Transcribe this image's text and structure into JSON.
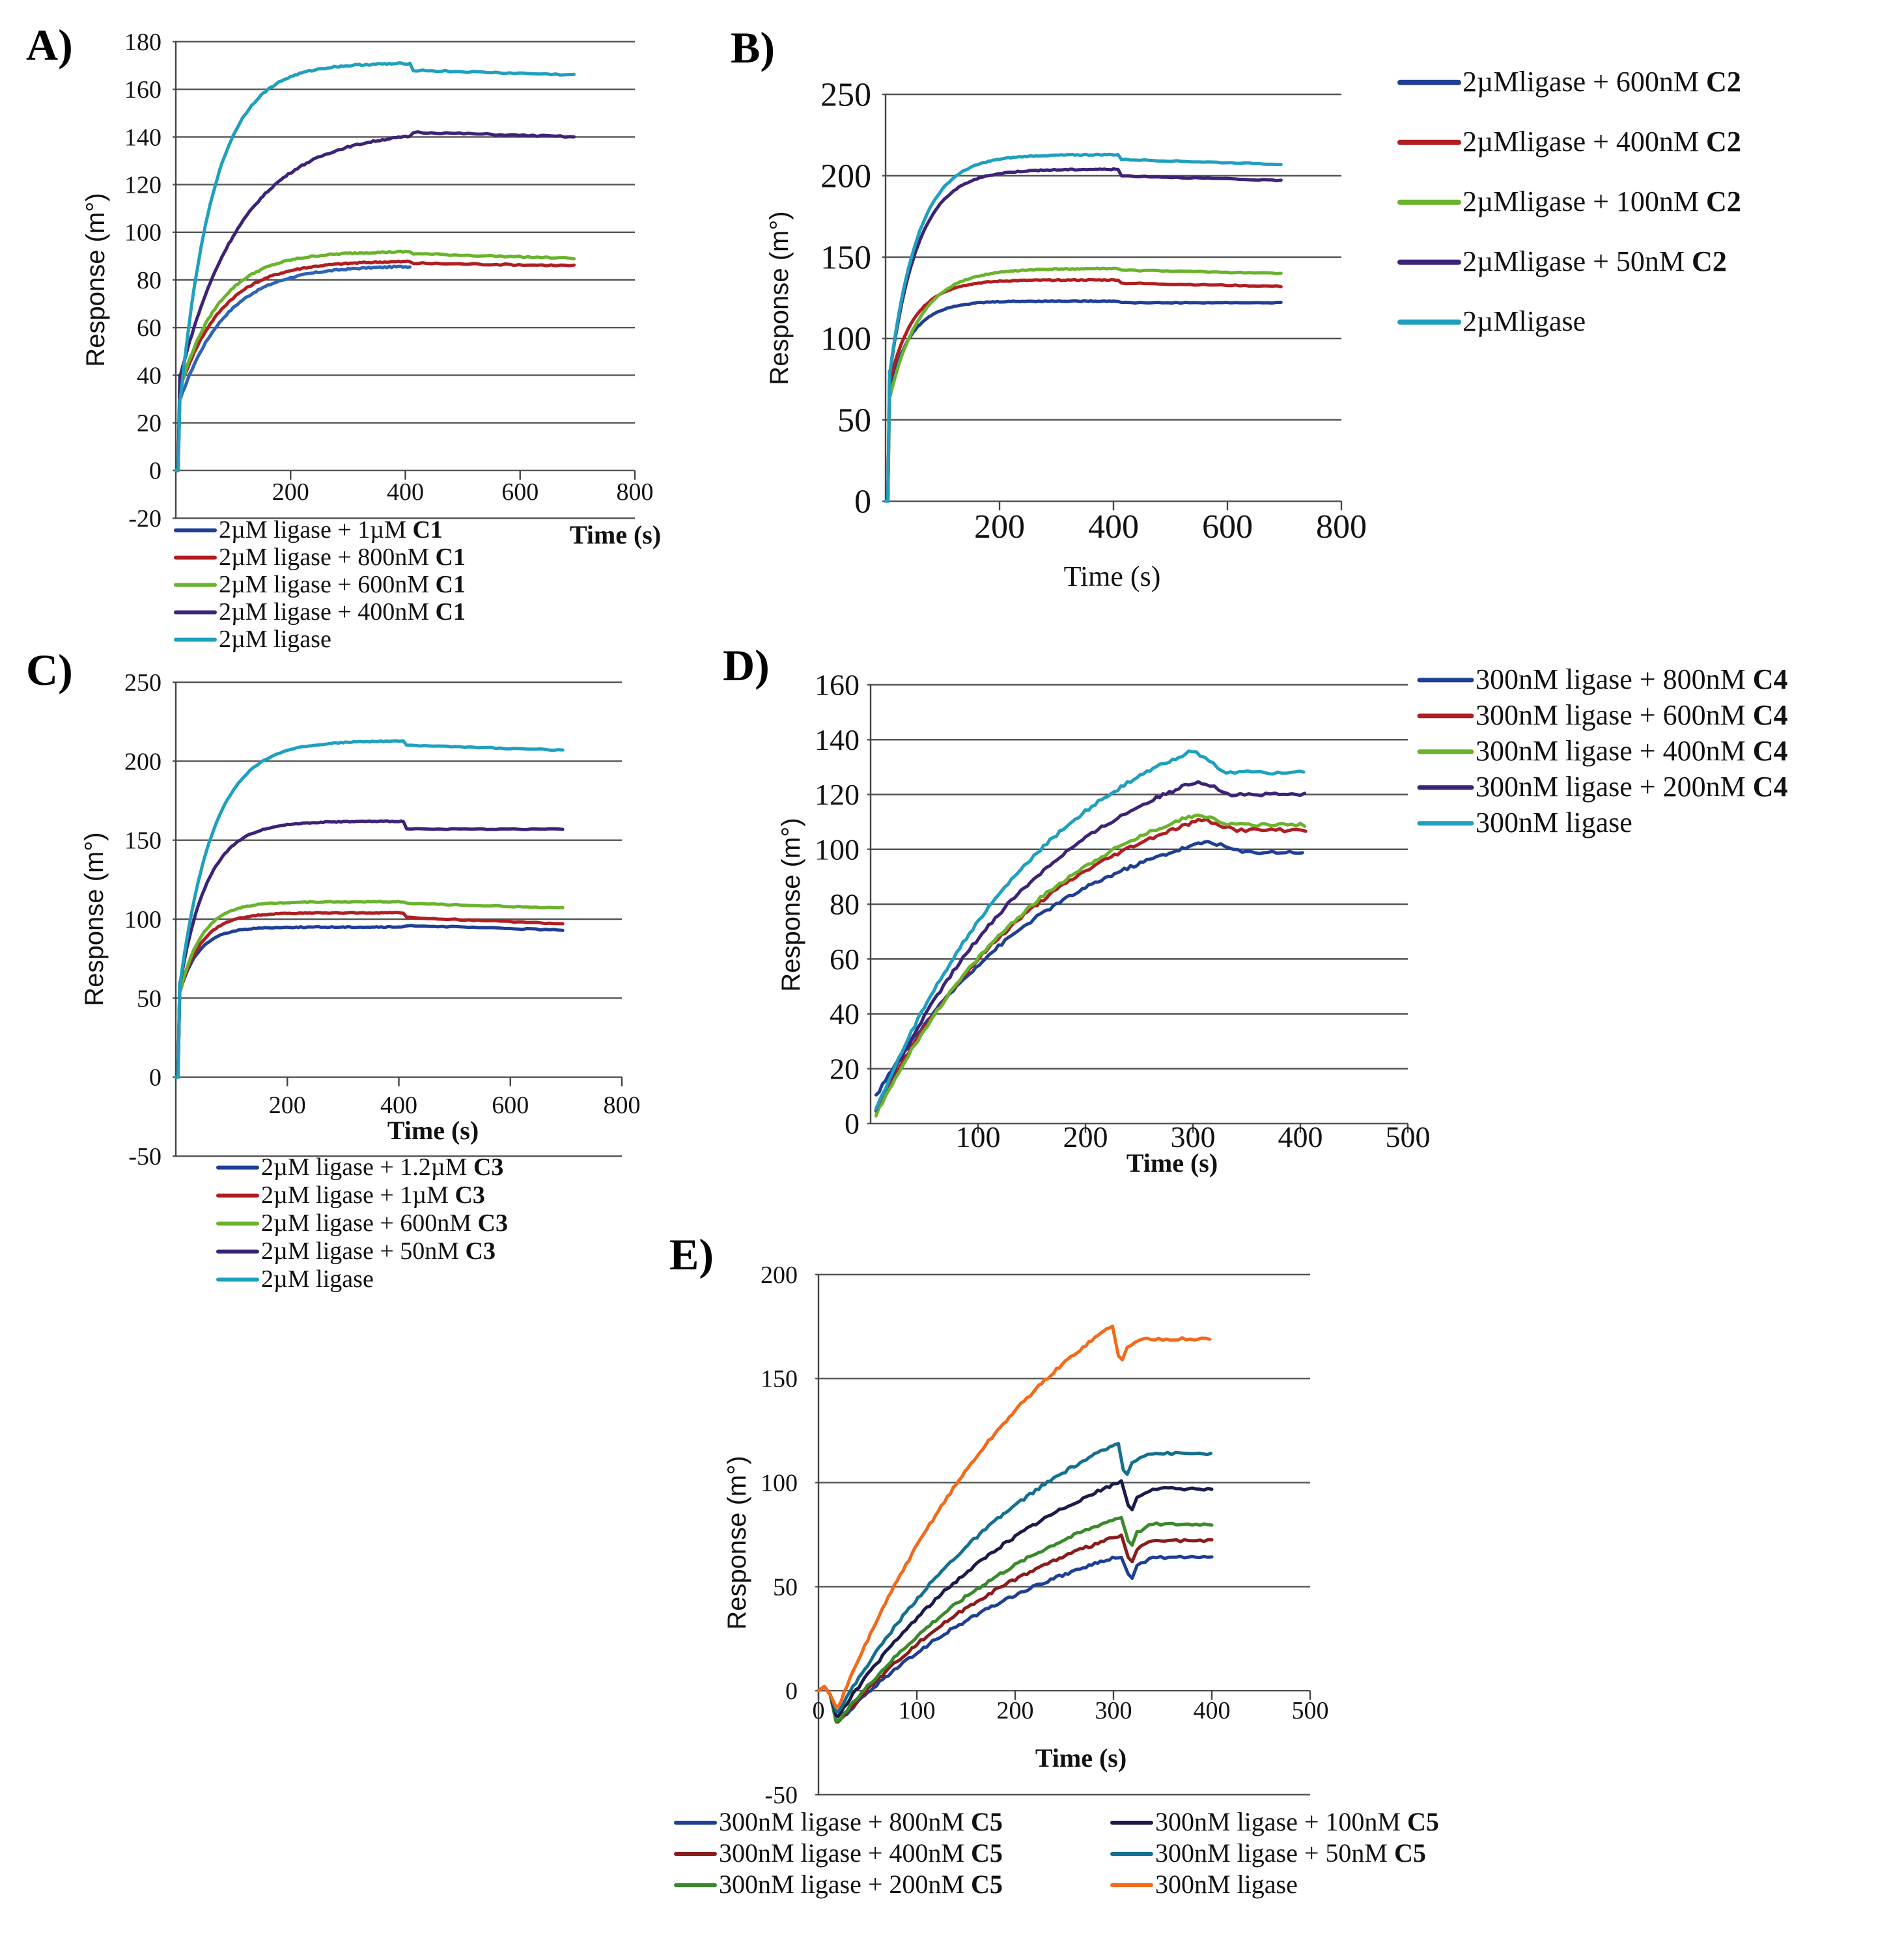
{
  "chart_data": [
    {
      "panel": "A)",
      "type": "line",
      "ylabel": "Response (m°)",
      "xlabel": "Time (s)",
      "xlabel_bold": true,
      "xlim": [
        0,
        800
      ],
      "ylim": [
        -20,
        180
      ],
      "yticks": [
        -20,
        0,
        20,
        40,
        60,
        80,
        100,
        120,
        140,
        160,
        180
      ],
      "xticks": [
        200,
        400,
        600,
        800
      ],
      "legend": [
        {
          "prefix": "2µM ligase + 1µM ",
          "bold": "C1",
          "color": "#1f3f95"
        },
        {
          "prefix": "2µM ligase + 800nM ",
          "bold": "C1",
          "color": "#b01e22"
        },
        {
          "prefix": "2µM ligase + 600nM ",
          "bold": "C1",
          "color": "#6ab42d"
        },
        {
          "prefix": "2µM ligase + 400nM ",
          "bold": "C1",
          "color": "#3d2377"
        },
        {
          "prefix": "2µM ligase",
          "bold": "",
          "color": "#1fa0bf"
        }
      ],
      "series": [
        {
          "name": "2µM ligase + 1µM C1",
          "color": "#2e64b8",
          "kind": "assoc",
          "plateau": 86,
          "tau": 80,
          "y0": 30,
          "end": 84,
          "dip": 0,
          "tend": 410
        },
        {
          "name": "2µM ligase + 800nM C1",
          "color": "#b01e22",
          "kind": "assoc",
          "plateau": 88,
          "tau": 75,
          "y0": 35,
          "end": 86,
          "dip": -1
        },
        {
          "name": "2µM ligase + 600nM C1",
          "color": "#6ab42d",
          "kind": "assoc",
          "plateau": 92,
          "tau": 70,
          "y0": 35,
          "end": 89,
          "dip": -1
        },
        {
          "name": "2µM ligase + 400nM C1",
          "color": "#3d2377",
          "kind": "assoc",
          "plateau": 143,
          "tau": 110,
          "y0": 40,
          "end": 140,
          "dip": -1
        },
        {
          "name": "2µM ligase",
          "color": "#1fa0bf",
          "kind": "assoc",
          "plateau": 171,
          "tau": 60,
          "y0": 30,
          "end": 166,
          "dip": -3
        }
      ]
    },
    {
      "panel": "B)",
      "type": "line",
      "ylabel": "Response (m°)",
      "xlabel": "Time (s)",
      "xlabel_bold": false,
      "xlim": [
        0,
        800
      ],
      "ylim": [
        0,
        250
      ],
      "yticks": [
        0,
        50,
        100,
        150,
        200,
        250
      ],
      "xticks": [
        200,
        400,
        600,
        800
      ],
      "legend": [
        {
          "prefix": "2µMligase + 600nM ",
          "bold": "C2",
          "color": "#1f3f95"
        },
        {
          "prefix": "2µMligase + 400nM ",
          "bold": "C2",
          "color": "#b01e22"
        },
        {
          "prefix": "2µMligase + 100nM ",
          "bold": "C2",
          "color": "#6ab42d"
        },
        {
          "prefix": "2µMligase + 50nM ",
          "bold": "C2",
          "color": "#3d2377"
        },
        {
          "prefix": "2µMligase",
          "bold": "",
          "color": "#1fa0bf"
        }
      ],
      "series": [
        {
          "name": "2µMligase + 600nM C2",
          "color": "#1f3f95",
          "kind": "assoc",
          "plateau": 123,
          "tau": 40,
          "y0": 70,
          "end": 122,
          "dip": -1
        },
        {
          "name": "2µMligase + 400nM C2",
          "color": "#b01e22",
          "kind": "assoc",
          "plateau": 136,
          "tau": 45,
          "y0": 75,
          "end": 132,
          "dip": -2
        },
        {
          "name": "2µMligase + 100nM C2",
          "color": "#6ab42d",
          "kind": "assoc",
          "plateau": 143,
          "tau": 55,
          "y0": 65,
          "end": 140,
          "dip": -1
        },
        {
          "name": "2µMligase + 50nM C2",
          "color": "#3d2377",
          "kind": "assoc",
          "plateau": 204,
          "tau": 50,
          "y0": 80,
          "end": 197,
          "dip": -4
        },
        {
          "name": "2µMligase",
          "color": "#1fa0bf",
          "kind": "assoc",
          "plateau": 213,
          "tau": 50,
          "y0": 80,
          "end": 207,
          "dip": -3
        }
      ]
    },
    {
      "panel": "C)",
      "type": "line",
      "ylabel": "Response (m°)",
      "xlabel": "Time (s)",
      "xlabel_bold": true,
      "xlim": [
        0,
        800
      ],
      "ylim": [
        -50,
        250
      ],
      "yticks": [
        -50,
        0,
        50,
        100,
        150,
        200,
        250
      ],
      "xticks": [
        200,
        400,
        600,
        800
      ],
      "legend": [
        {
          "prefix": "2µM ligase + 1.2µM ",
          "bold": "C3",
          "color": "#1f3f95"
        },
        {
          "prefix": "2µM ligase + 1µM ",
          "bold": "C3",
          "color": "#b01e22"
        },
        {
          "prefix": "2µM ligase + 600nM ",
          "bold": "C3",
          "color": "#6ab42d"
        },
        {
          "prefix": "2µM ligase + 50nM ",
          "bold": "C3",
          "color": "#3d2377"
        },
        {
          "prefix": "2µM ligase",
          "bold": "",
          "color": "#1fa0bf"
        }
      ],
      "series": [
        {
          "name": "2µM ligase + 1.2µM C3",
          "color": "#1f3f95",
          "kind": "assoc",
          "plateau": 95,
          "tau": 35,
          "y0": 55,
          "end": 93,
          "dip": 1
        },
        {
          "name": "2µM ligase + 1µM C3",
          "color": "#b01e22",
          "kind": "assoc",
          "plateau": 104,
          "tau": 40,
          "y0": 55,
          "end": 97,
          "dip": -3
        },
        {
          "name": "2µM ligase + 600nM C3",
          "color": "#6ab42d",
          "kind": "assoc",
          "plateau": 111,
          "tau": 40,
          "y0": 55,
          "end": 107,
          "dip": -1
        },
        {
          "name": "2µM ligase + 50nM C3",
          "color": "#3d2377",
          "kind": "assoc",
          "plateau": 162,
          "tau": 50,
          "y0": 60,
          "end": 157,
          "dip": -5
        },
        {
          "name": "2µM ligase",
          "color": "#1fa0bf",
          "kind": "assoc",
          "plateau": 213,
          "tau": 60,
          "y0": 60,
          "end": 207,
          "dip": -3
        }
      ]
    },
    {
      "panel": "D)",
      "type": "line",
      "ylabel": "Response (m°)",
      "xlabel": "Time (s)",
      "xlabel_bold": true,
      "xlim": [
        0,
        500
      ],
      "ylim": [
        0,
        160
      ],
      "yticks": [
        0,
        20,
        40,
        60,
        80,
        100,
        120,
        140,
        160
      ],
      "xticks": [
        100,
        200,
        300,
        400,
        500
      ],
      "legend": [
        {
          "prefix": "300nM ligase + 800nM ",
          "bold": "C4",
          "color": "#1f3f95"
        },
        {
          "prefix": "300nM ligase + 600nM ",
          "bold": "C4",
          "color": "#b01e22"
        },
        {
          "prefix": "300nM ligase + 400nM ",
          "bold": "C4",
          "color": "#6ab42d"
        },
        {
          "prefix": "300nM ligase + 200nM ",
          "bold": "C4",
          "color": "#3d2377"
        },
        {
          "prefix": "300nM ligase",
          "bold": "",
          "color": "#1fa0bf"
        }
      ],
      "series": [
        {
          "name": "300nM ligase + 800nM C4",
          "color": "#1f3f95",
          "kind": "slow",
          "peak": 103,
          "tpeak": 315,
          "start": 10,
          "end": 99,
          "tend": 405
        },
        {
          "name": "300nM ligase + 600nM C4",
          "color": "#b01e22",
          "kind": "slow",
          "peak": 111,
          "tpeak": 310,
          "start": 5,
          "end": 107,
          "tend": 405
        },
        {
          "name": "300nM ligase + 400nM C4",
          "color": "#6ab42d",
          "kind": "slow",
          "peak": 113,
          "tpeak": 305,
          "start": 3,
          "end": 109,
          "tend": 405
        },
        {
          "name": "300nM ligase + 200nM C4",
          "color": "#3d2377",
          "kind": "slow",
          "peak": 125,
          "tpeak": 305,
          "start": 5,
          "end": 120,
          "tend": 405
        },
        {
          "name": "300nM ligase",
          "color": "#1fa0bf",
          "kind": "slow",
          "peak": 136,
          "tpeak": 300,
          "start": 5,
          "end": 128,
          "tend": 405
        }
      ]
    },
    {
      "panel": "E)",
      "type": "line",
      "ylabel": "Response (m°)",
      "xlabel": "Time (s)",
      "xlabel_bold": true,
      "xlim": [
        0,
        500
      ],
      "ylim": [
        -50,
        200
      ],
      "yticks": [
        -50,
        0,
        50,
        100,
        150,
        200
      ],
      "xticks": [
        0,
        100,
        200,
        300,
        400,
        500
      ],
      "legend": [
        {
          "prefix": "300nM ligase + 800nM ",
          "bold": "C5",
          "color": "#1f3f95"
        },
        {
          "prefix": "300nM ligase + 400nM ",
          "bold": "C5",
          "color": "#8a1c1c"
        },
        {
          "prefix": "300nM ligase + 200nM ",
          "bold": "C5",
          "color": "#3a8a2a"
        },
        {
          "prefix": "300nM ligase + 100nM ",
          "bold": "C5",
          "color": "#1b1b4a"
        },
        {
          "prefix": "300nM ligase + 50nM ",
          "bold": "C5",
          "color": "#15708f"
        },
        {
          "prefix": "300nM ligase",
          "bold": "",
          "color": "#f26a1b"
        }
      ],
      "series": [
        {
          "name": "300nM ligase + 800nM C5",
          "color": "#1f3f95",
          "kind": "slowE",
          "peak": 65,
          "tpeak": 310,
          "start": -15,
          "end": 64,
          "tend": 400
        },
        {
          "name": "300nM ligase + 400nM C5",
          "color": "#8a1c1c",
          "kind": "slowE",
          "peak": 75,
          "tpeak": 310,
          "start": -15,
          "end": 72,
          "tend": 400
        },
        {
          "name": "300nM ligase + 200nM C5",
          "color": "#3a8a2a",
          "kind": "slowE",
          "peak": 84,
          "tpeak": 310,
          "start": -15,
          "end": 80,
          "tend": 400
        },
        {
          "name": "300nM ligase + 100nM C5",
          "color": "#1b1b4a",
          "kind": "slowE",
          "peak": 101,
          "tpeak": 310,
          "start": -12,
          "end": 97,
          "tend": 400
        },
        {
          "name": "300nM ligase + 50nM C5",
          "color": "#15708f",
          "kind": "slowE",
          "peak": 119,
          "tpeak": 305,
          "start": -10,
          "end": 114,
          "tend": 400
        },
        {
          "name": "300nM ligase",
          "color": "#f26a1b",
          "kind": "slowE",
          "peak": 176,
          "tpeak": 300,
          "start": -8,
          "end": 169,
          "tend": 400
        }
      ]
    }
  ]
}
